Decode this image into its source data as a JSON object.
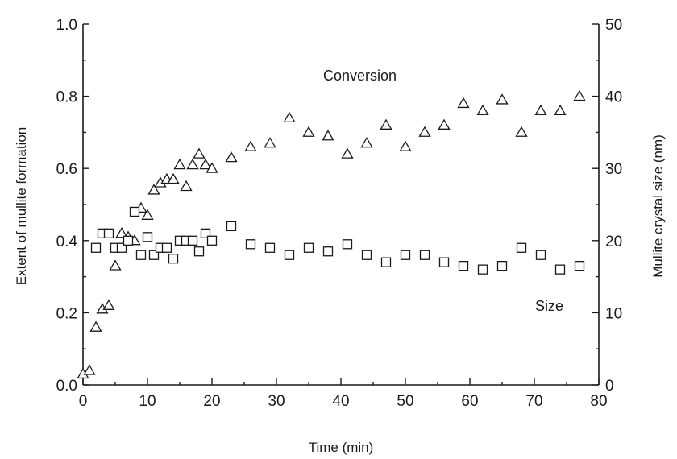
{
  "chart_data": {
    "type": "scatter",
    "xlabel": "Time (min)",
    "ylabel": "Extent of mullite formation",
    "y2label": "Mullite crystal size (nm)",
    "xlim": [
      0,
      80
    ],
    "ylim": [
      0,
      1.0
    ],
    "y2lim": [
      0,
      50
    ],
    "xticks": [
      "0",
      "10",
      "20",
      "30",
      "40",
      "50",
      "60",
      "70",
      "80"
    ],
    "yticks": [
      "0.0",
      "0.2",
      "0.4",
      "0.6",
      "0.8",
      "1.0"
    ],
    "y2ticks": [
      "0",
      "10",
      "20",
      "30",
      "40",
      "50"
    ],
    "grid": false,
    "annotations": [
      "Conversion",
      "Size"
    ],
    "series": [
      {
        "label": "Conversion",
        "marker": "triangle",
        "axis": "left",
        "x": [
          0,
          1,
          2,
          3,
          4,
          5,
          6,
          7,
          8,
          9,
          10,
          11,
          12,
          13,
          14,
          15,
          16,
          17,
          18,
          19,
          20,
          23,
          26,
          29,
          32,
          35,
          38,
          41,
          44,
          47,
          50,
          53,
          56,
          59,
          62,
          65,
          68,
          71,
          74,
          77
        ],
        "y": [
          0.03,
          0.04,
          0.16,
          0.21,
          0.22,
          0.33,
          0.42,
          0.41,
          0.4,
          0.49,
          0.47,
          0.54,
          0.56,
          0.57,
          0.57,
          0.61,
          0.55,
          0.61,
          0.64,
          0.61,
          0.6,
          0.63,
          0.66,
          0.67,
          0.74,
          0.7,
          0.69,
          0.64,
          0.67,
          0.72,
          0.66,
          0.7,
          0.72,
          0.78,
          0.76,
          0.79,
          0.7,
          0.76,
          0.76,
          0.8
        ]
      },
      {
        "label": "Size",
        "marker": "square",
        "axis": "right",
        "x": [
          2,
          3,
          4,
          5,
          6,
          7,
          8,
          9,
          10,
          11,
          12,
          13,
          14,
          15,
          16,
          17,
          18,
          19,
          20,
          23,
          26,
          29,
          32,
          35,
          38,
          41,
          44,
          47,
          50,
          53,
          56,
          59,
          62,
          65,
          68,
          71,
          74,
          77
        ],
        "y": [
          19,
          21,
          21,
          19,
          19,
          20,
          24,
          18,
          20.5,
          18,
          19,
          19,
          17.5,
          20,
          20,
          20,
          18.5,
          21,
          20,
          22,
          19.5,
          19,
          18,
          19,
          18.5,
          19.5,
          18,
          17,
          18,
          18,
          17,
          16.5,
          16,
          16.5,
          19,
          18,
          16,
          16.5
        ]
      }
    ]
  }
}
